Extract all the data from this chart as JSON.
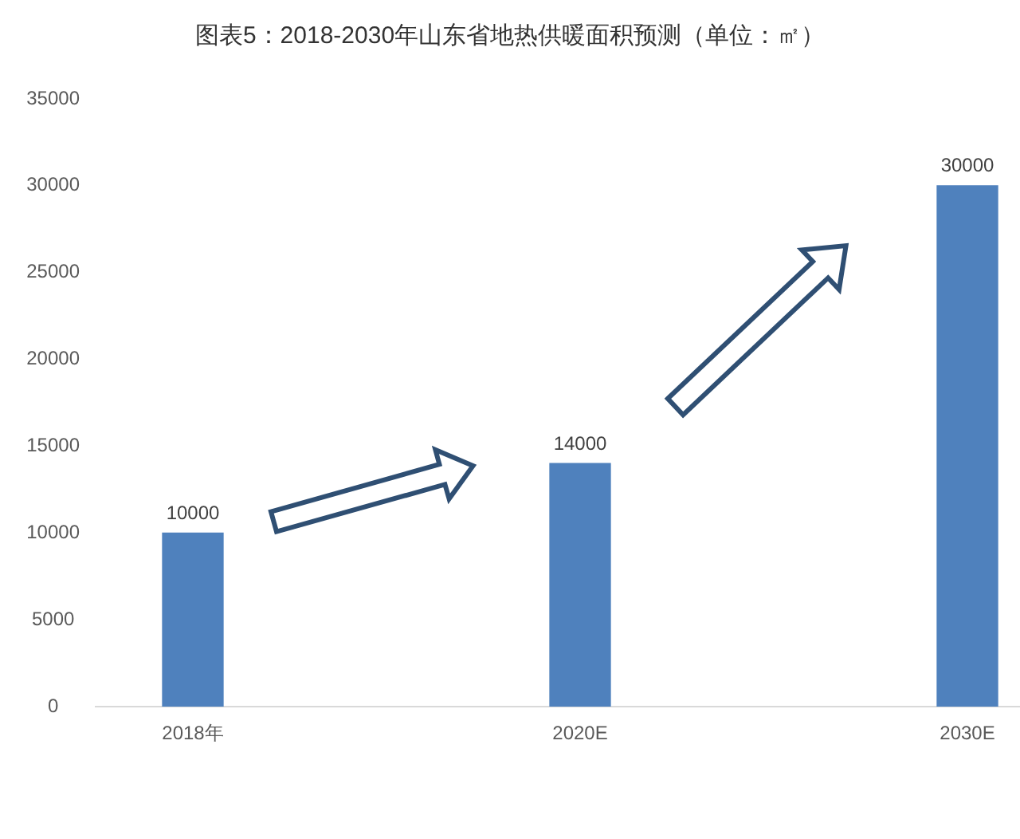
{
  "chart_data": {
    "type": "bar",
    "title": "图表5：2018-2030年山东省地热供暖面积预测（单位：㎡）",
    "categories": [
      "2018年",
      "2020E",
      "2030E"
    ],
    "values": [
      10000,
      14000,
      30000
    ],
    "color": "#4f81bd",
    "ylim": [
      0,
      35000
    ],
    "yticks": [
      0,
      5000,
      10000,
      15000,
      20000,
      25000,
      30000,
      35000
    ],
    "grid": false,
    "legend": false,
    "data_labels": true
  }
}
